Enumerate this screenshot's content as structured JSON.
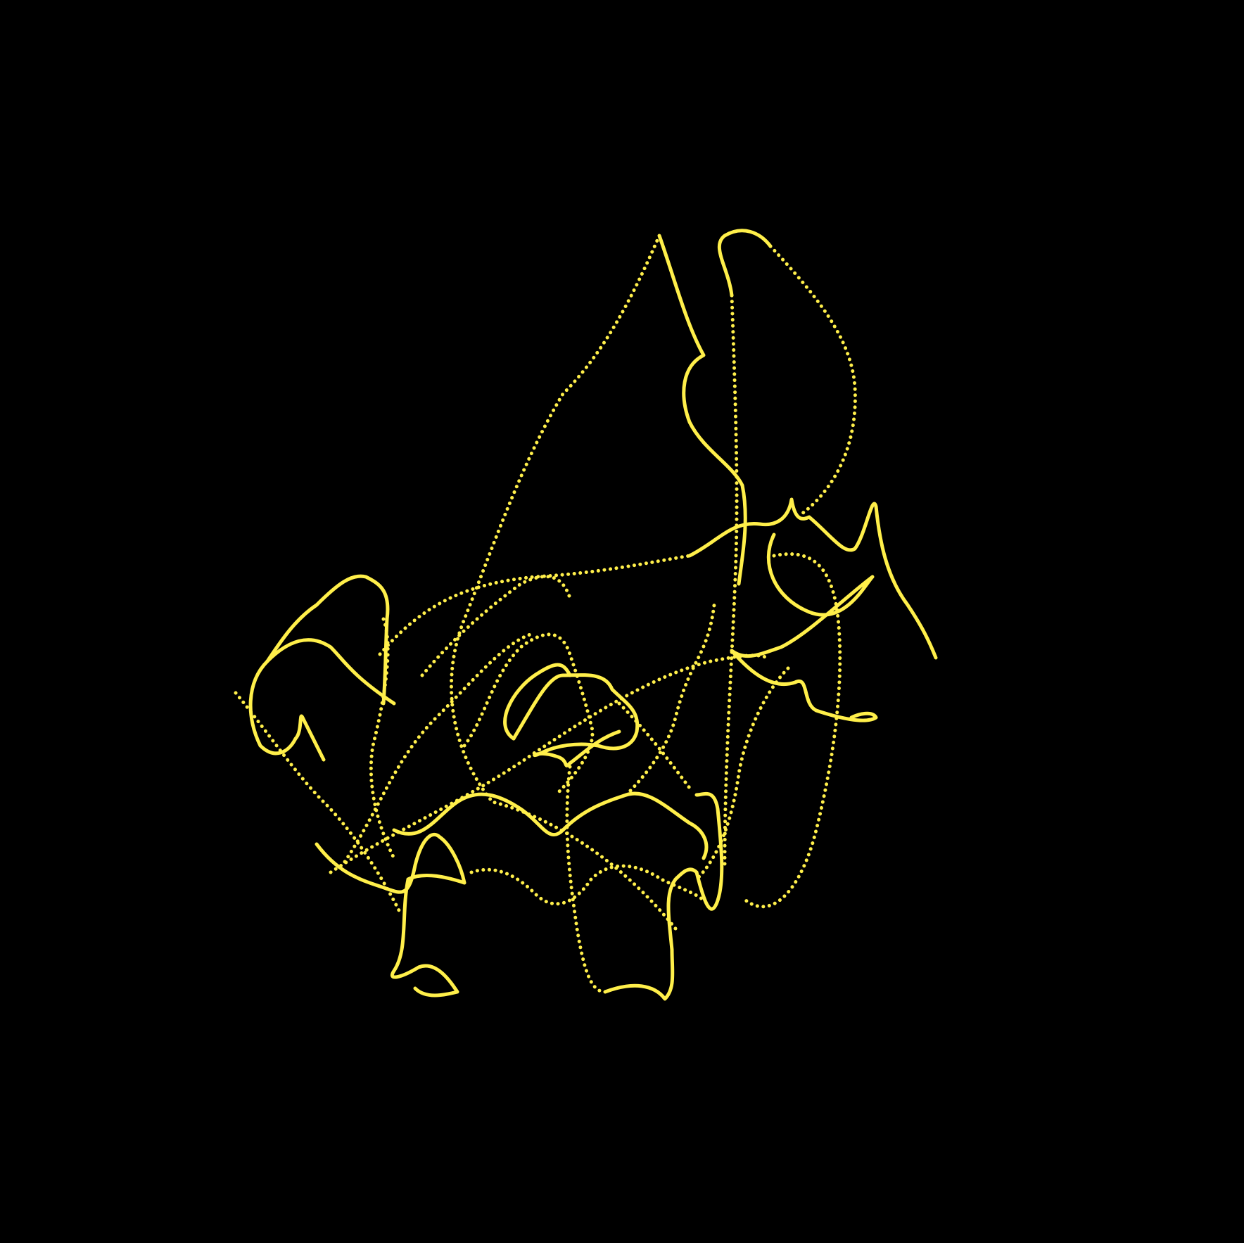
{
  "background_color": "#000000",
  "trace_color": "#ffef4a",
  "trace_style": "dotted-yellow-path"
}
